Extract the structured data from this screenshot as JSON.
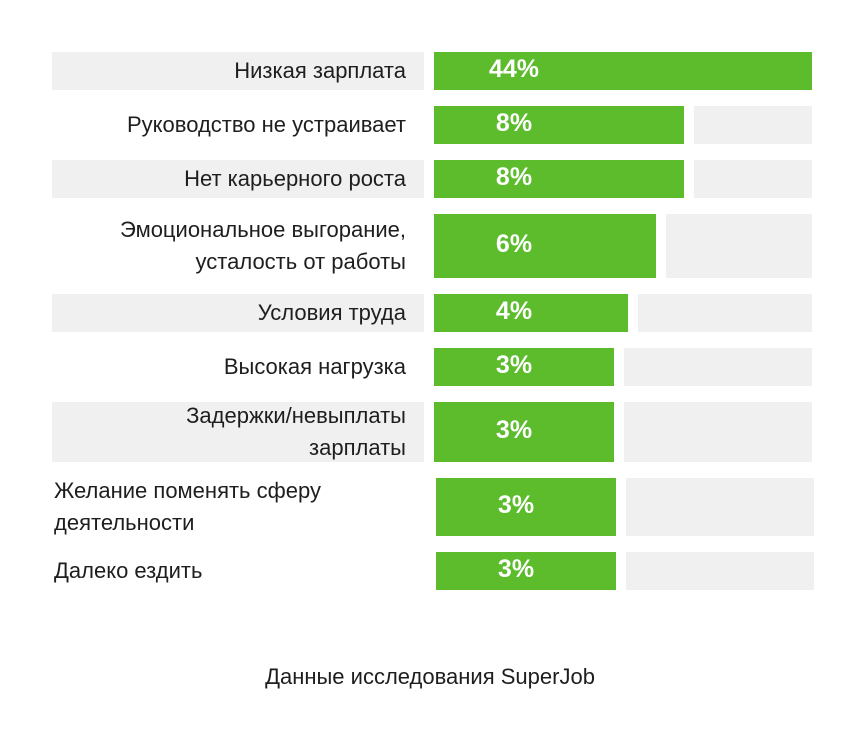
{
  "chart_data": {
    "type": "bar",
    "orientation": "horizontal",
    "unit": "%",
    "xlim": [
      0,
      44
    ],
    "categories": [
      "Низкая зарплата",
      "Руководство не устраивает",
      "Нет карьерного роста",
      "Эмоциональное выгорание, усталость от работы",
      "Условия труда",
      "Высокая нагрузка",
      "Задержки/невыплаты зарплаты",
      "Желание поменять сферу деятельности",
      "Далеко ездить"
    ],
    "label_lines": [
      [
        "Низкая зарплата"
      ],
      [
        "Руководство не устраивает"
      ],
      [
        "Нет карьерного роста"
      ],
      [
        "Эмоциональное выгорание,",
        "усталость от работы"
      ],
      [
        "Условия труда"
      ],
      [
        "Высокая нагрузка"
      ],
      [
        "Задержки/невыплаты",
        "зарплаты"
      ],
      [
        "Желание поменять сферу",
        "деятельности"
      ],
      [
        "Далеко ездить"
      ]
    ],
    "values": [
      44,
      8,
      8,
      6,
      4,
      3,
      3,
      3,
      3
    ],
    "value_labels": [
      "44%",
      "8%",
      "8%",
      "6%",
      "4%",
      "3%",
      "3%",
      "3%",
      "3%"
    ],
    "label_background": [
      true,
      false,
      true,
      false,
      true,
      false,
      true,
      false,
      false
    ],
    "label_align": [
      "right",
      "right",
      "right",
      "right",
      "right",
      "right",
      "right",
      "left",
      "left"
    ],
    "colors": {
      "bar": "#5cbc2c",
      "track": "#f0f0f0",
      "value_text": "#ffffff",
      "label_text": "#1e1e1e"
    }
  },
  "footer": {
    "source": "Данные исследования SuperJob"
  }
}
